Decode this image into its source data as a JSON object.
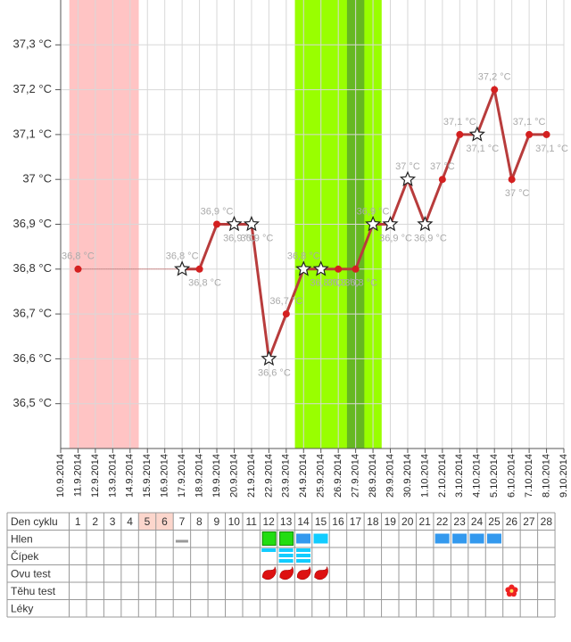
{
  "chart_data": {
    "type": "line",
    "x": [
      "10.9.2014",
      "11.9.2014",
      "12.9.2014",
      "13.9.2014",
      "14.9.2014",
      "15.9.2014",
      "16.9.2014",
      "17.9.2014",
      "18.9.2014",
      "19.9.2014",
      "20.9.2014",
      "21.9.2014",
      "22.9.2014",
      "23.9.2014",
      "24.9.2014",
      "25.9.2014",
      "26.9.2014",
      "27.9.2014",
      "28.9.2014",
      "29.9.2014",
      "30.9.2014",
      "1.10.2014",
      "2.10.2014",
      "3.10.2014",
      "4.10.2014",
      "5.10.2014",
      "6.10.2014",
      "7.10.2014",
      "8.10.2014",
      "9.10.2014"
    ],
    "series": [
      {
        "color": "#b83c3c",
        "marker_color": "#d42020",
        "values": [
          null,
          36.8,
          null,
          null,
          null,
          null,
          null,
          36.8,
          36.8,
          36.9,
          36.9,
          36.9,
          36.6,
          36.7,
          36.8,
          36.8,
          36.8,
          36.8,
          36.9,
          36.9,
          37.0,
          36.9,
          37.0,
          37.1,
          37.1,
          37.2,
          37.0,
          37.1,
          37.1,
          null
        ],
        "value_labels": [
          null,
          "36,8 °C",
          null,
          null,
          null,
          null,
          null,
          "36,8 °C",
          "36,8 °C",
          "36,9 °C",
          "36,9 °C",
          "36,9 °C",
          "36,6 °C",
          "36,7 °C",
          "36,8 °C",
          "36,8 °C",
          "36,8 °C",
          "36,8 °C",
          "36,9 °C",
          "36,9 °C",
          "37 °C",
          "36,9 °C",
          "37 °C",
          "37,1 °C",
          "37,1 °C",
          "37,2 °C",
          "37 °C",
          "37,1 °C",
          "37,1 °C",
          null
        ],
        "markers": [
          null,
          "dot",
          null,
          null,
          null,
          null,
          null,
          "star",
          "dot",
          "dot",
          "star",
          "star",
          "star",
          "dot",
          "star",
          "star",
          "dot",
          "dot",
          "star",
          "star",
          "star",
          "star",
          "dot",
          "dot",
          "star",
          "dot",
          "dot",
          "dot",
          "dot",
          null
        ]
      }
    ],
    "ylim": [
      36.4,
      37.4
    ],
    "yticks": [
      {
        "value": 36.5,
        "label": "36,5 °C"
      },
      {
        "value": 36.6,
        "label": "36,6 °C"
      },
      {
        "value": 36.7,
        "label": "36,7 °C"
      },
      {
        "value": 36.8,
        "label": "36,8 °C"
      },
      {
        "value": 36.9,
        "label": "36,9 °C"
      },
      {
        "value": 37,
        "label": "37 °C"
      },
      {
        "value": 37.1,
        "label": "37,1 °C"
      },
      {
        "value": 37.2,
        "label": "37,2 °C"
      },
      {
        "value": 37.3,
        "label": "37,3 °C"
      }
    ],
    "grid": true,
    "bands": [
      {
        "from": "11.9.2014",
        "to": "14.9.2014",
        "color": "#ffc4c4"
      },
      {
        "from": "24.9.2014",
        "to": "28.9.2014",
        "color": "#99ff00"
      },
      {
        "from": "27.9.2014",
        "to": "27.9.2014",
        "color": "#66b822"
      }
    ]
  },
  "table": {
    "row_labels": [
      "Den cyklu",
      "Hlen",
      "Čípek",
      "Ovu test",
      "Těhu test",
      "Léky"
    ],
    "cycle_days": [
      1,
      2,
      3,
      4,
      5,
      6,
      7,
      8,
      9,
      10,
      11,
      12,
      13,
      14,
      15,
      16,
      17,
      18,
      19,
      20,
      21,
      22,
      23,
      24,
      25,
      26,
      27,
      28
    ],
    "highlighted_days": [
      5,
      6
    ]
  }
}
